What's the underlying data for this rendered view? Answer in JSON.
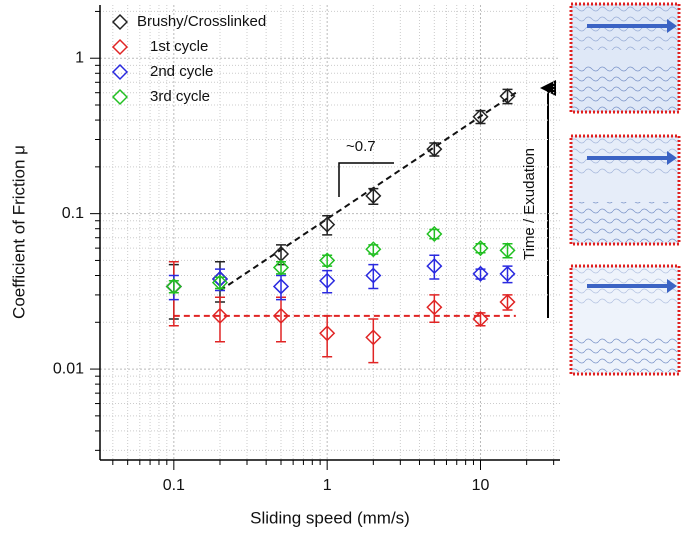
{
  "chart_data": {
    "type": "scatter",
    "xlabel": "Sliding speed (mm/s)",
    "ylabel": "Coefficient of Friction μ",
    "xscale": "log",
    "yscale": "log",
    "grid": true,
    "legend": "upper left",
    "xlim": [
      0.033,
      33
    ],
    "ylim": [
      0.0026,
      2.2
    ],
    "xticks": [
      0.1,
      1,
      10
    ],
    "yticks": [
      0.01,
      0.1,
      1
    ],
    "xminorticks": [
      0.04,
      0.05,
      0.06,
      0.07,
      0.08,
      0.09,
      0.2,
      0.3,
      0.4,
      0.5,
      0.6,
      0.7,
      0.8,
      0.9,
      2,
      3,
      4,
      5,
      6,
      7,
      8,
      9,
      20,
      30
    ],
    "yminorticks": [
      0.003,
      0.004,
      0.005,
      0.006,
      0.007,
      0.008,
      0.009,
      0.02,
      0.03,
      0.04,
      0.05,
      0.06,
      0.07,
      0.08,
      0.09,
      0.2,
      0.3,
      0.4,
      0.5,
      0.6,
      0.7,
      0.8,
      0.9,
      2
    ],
    "x": [
      0.1,
      0.2,
      0.5,
      1,
      2,
      5,
      10,
      15
    ],
    "series": [
      {
        "name": "Brushy/Crosslinked",
        "color": "#222222",
        "values": [
          0.034,
          0.038,
          0.055,
          0.085,
          0.13,
          0.26,
          0.42,
          0.57
        ],
        "errors": [
          0.013,
          0.011,
          0.008,
          0.012,
          0.015,
          0.025,
          0.04,
          0.06
        ]
      },
      {
        "name": "1st cycle",
        "color": "#e02424",
        "values": [
          0.034,
          0.022,
          0.022,
          0.017,
          0.016,
          0.025,
          0.021,
          0.027
        ],
        "errors": [
          0.015,
          0.007,
          0.007,
          0.005,
          0.005,
          0.005,
          0.002,
          0.003
        ]
      },
      {
        "name": "2nd cycle",
        "color": "#2a2ae0",
        "values": [
          0.034,
          0.038,
          0.034,
          0.037,
          0.04,
          0.046,
          0.041,
          0.041
        ],
        "errors": [
          0.006,
          0.006,
          0.006,
          0.006,
          0.007,
          0.008,
          0.003,
          0.005
        ]
      },
      {
        "name": "3rd cycle",
        "color": "#22c022",
        "values": [
          0.034,
          0.036,
          0.045,
          0.05,
          0.059,
          0.074,
          0.06,
          0.058
        ],
        "errors": [
          0.003,
          0.003,
          0.004,
          0.004,
          0.004,
          0.005,
          0.004,
          0.006
        ]
      }
    ],
    "fit_lines": [
      {
        "color": "#111111",
        "x": [
          0.2,
          17
        ],
        "y": [
          0.032,
          0.6
        ]
      },
      {
        "color": "#e02424",
        "x": [
          0.1,
          17
        ],
        "y": [
          0.022,
          0.022
        ]
      }
    ],
    "annotations": [
      "~0.7",
      "Time / Exudation"
    ]
  }
}
